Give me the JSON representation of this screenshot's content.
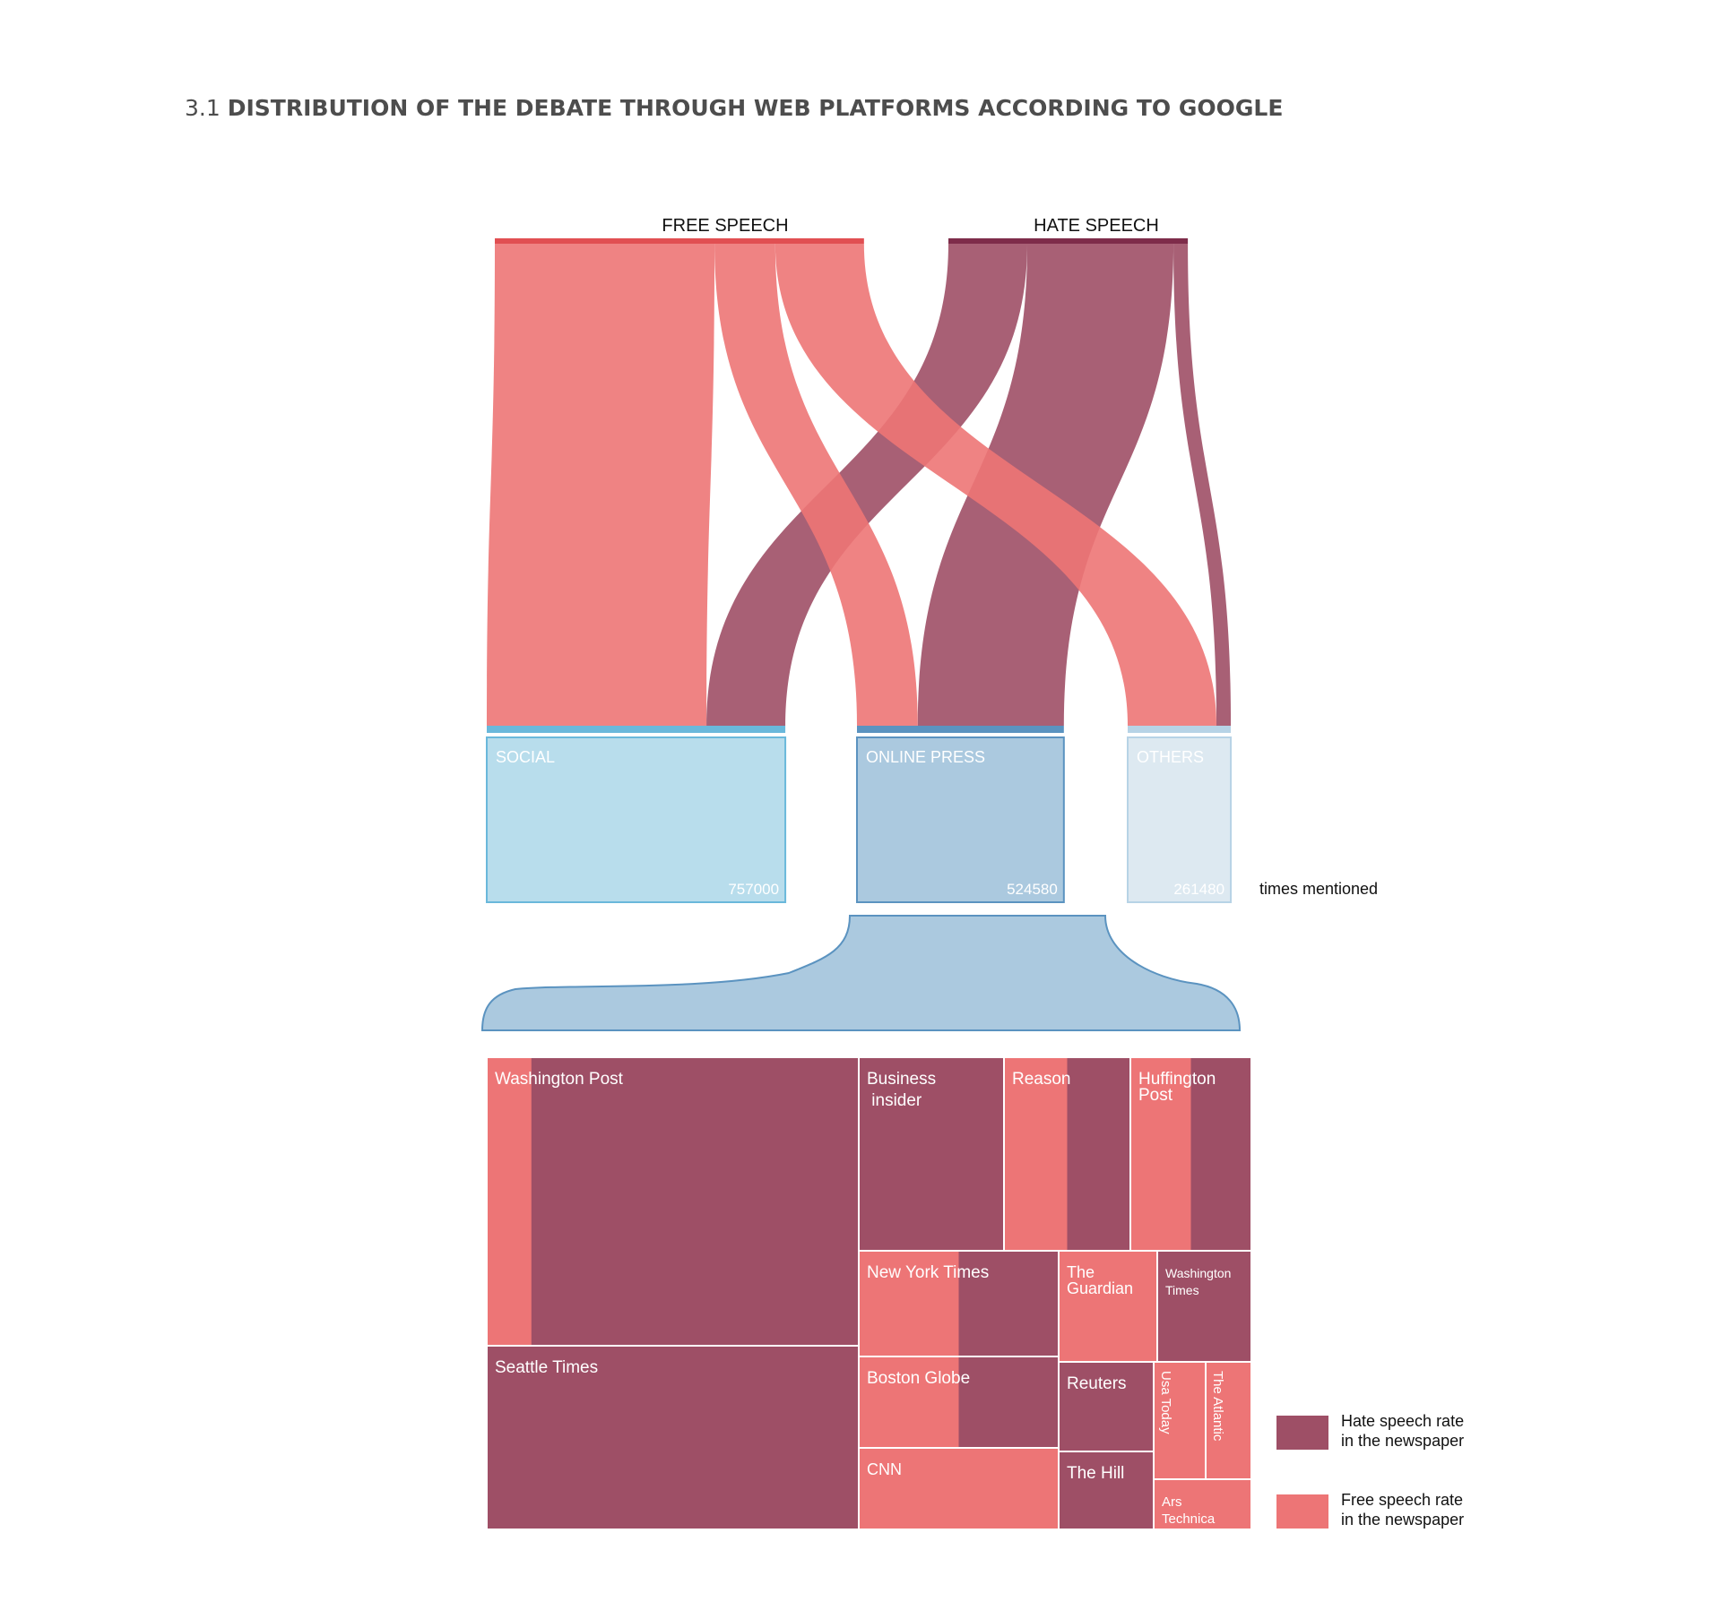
{
  "chart_data": {
    "type": "sankey-treemap",
    "title_number": "3.1",
    "title": "DISTRIBUTION OF THE DEBATE THROUGH WEB PLATFORMS ACCORDING TO GOOGLE",
    "sources": [
      {
        "id": "free",
        "label": "FREE SPEECH",
        "color": "#ED7576"
      },
      {
        "id": "hate",
        "label": "HATE SPEECH",
        "color": "#9E4F66"
      }
    ],
    "targets": [
      {
        "id": "social",
        "label": "SOCIAL",
        "value": 757000,
        "value_label": "757000"
      },
      {
        "id": "press",
        "label": "ONLINE PRESS",
        "value": 524580,
        "value_label": "524580"
      },
      {
        "id": "others",
        "label": "OTHERS",
        "value": 261480,
        "value_label": "261480"
      }
    ],
    "unit_label": "times mentioned",
    "flows": [
      {
        "source": "free",
        "target": "social",
        "value": 557000
      },
      {
        "source": "free",
        "target": "press",
        "value": 154000
      },
      {
        "source": "free",
        "target": "others",
        "value": 225000
      },
      {
        "source": "hate",
        "target": "social",
        "value": 200000
      },
      {
        "source": "hate",
        "target": "press",
        "value": 370580
      },
      {
        "source": "hate",
        "target": "others",
        "value": 36480
      }
    ],
    "treemap": [
      {
        "name": "Washington Post",
        "free_rate": 0.12
      },
      {
        "name": "Seattle Times",
        "free_rate": 0.0
      },
      {
        "name": "Business\n insider",
        "free_rate": 0.0
      },
      {
        "name": "Reason",
        "free_rate": 0.5
      },
      {
        "name": "Huffington\nPost",
        "free_rate": 0.5
      },
      {
        "name": "New York Times",
        "free_rate": 0.5
      },
      {
        "name": "The\nGuardian",
        "free_rate": 1.0
      },
      {
        "name": "Washington\nTimes",
        "free_rate": 0.0
      },
      {
        "name": "Boston Globe",
        "free_rate": 0.5
      },
      {
        "name": "Reuters",
        "free_rate": 0.0
      },
      {
        "name": "Usa Today",
        "free_rate": 1.0
      },
      {
        "name": "The Atlantic",
        "free_rate": 1.0
      },
      {
        "name": "CNN",
        "free_rate": 1.0
      },
      {
        "name": "The Hill",
        "free_rate": 0.0
      },
      {
        "name": "Ars\nTechnica",
        "free_rate": 1.0
      }
    ],
    "legend": [
      {
        "label": "Hate speech rate\nin the newspaper",
        "color": "#9E4F66"
      },
      {
        "label": "Free speech rate\nin the newspaper",
        "color": "#ED7576"
      }
    ],
    "colors": {
      "social": "#B8DDEC",
      "social_bar": "#6AB8DB",
      "press": "#ABC9DF",
      "press_bar": "#5B93C0",
      "others": "#DDE9F1",
      "others_bar": "#B7D3E6"
    }
  }
}
